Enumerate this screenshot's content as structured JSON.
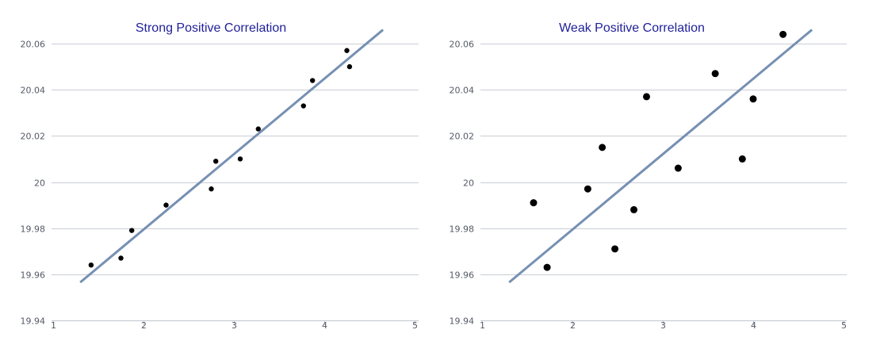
{
  "chart_data": [
    {
      "type": "scatter",
      "title": "Strong Positive Correlation",
      "xlim": [
        1,
        5
      ],
      "ylim": [
        19.94,
        20.06
      ],
      "x_ticks": [
        "1",
        "2",
        "3",
        "4",
        "5"
      ],
      "y_ticks": [
        "19.94",
        "19.96",
        "19.98",
        "20",
        "20.02",
        "20.04",
        "20.06"
      ],
      "grid": "horizontal",
      "point_color": "#000000",
      "line_color": "#7690b2",
      "points": [
        {
          "x": 1.42,
          "y": 19.964
        },
        {
          "x": 1.75,
          "y": 19.967
        },
        {
          "x": 1.87,
          "y": 19.979
        },
        {
          "x": 2.25,
          "y": 19.99
        },
        {
          "x": 2.75,
          "y": 19.997
        },
        {
          "x": 2.8,
          "y": 20.009
        },
        {
          "x": 3.07,
          "y": 20.01
        },
        {
          "x": 3.27,
          "y": 20.023
        },
        {
          "x": 3.77,
          "y": 20.033
        },
        {
          "x": 3.87,
          "y": 20.044
        },
        {
          "x": 4.25,
          "y": 20.057
        },
        {
          "x": 4.28,
          "y": 20.05
        }
      ],
      "trendline": [
        {
          "x": 1.3,
          "y": 19.9565
        },
        {
          "x": 4.65,
          "y": 20.066
        }
      ]
    },
    {
      "type": "scatter",
      "title": "Weak Positive Correlation",
      "xlim": [
        1,
        5
      ],
      "ylim": [
        19.94,
        20.06
      ],
      "x_ticks": [
        "1",
        "2",
        "3",
        "4",
        "5"
      ],
      "y_ticks": [
        "19.94",
        "19.96",
        "19.98",
        "20",
        "20.02",
        "20.04",
        "20.06"
      ],
      "grid": "horizontal",
      "point_color": "#000000",
      "line_color": "#7690b2",
      "points": [
        {
          "x": 1.57,
          "y": 19.991
        },
        {
          "x": 1.72,
          "y": 19.963
        },
        {
          "x": 2.17,
          "y": 19.997
        },
        {
          "x": 2.33,
          "y": 20.015
        },
        {
          "x": 2.47,
          "y": 19.971
        },
        {
          "x": 2.68,
          "y": 19.988
        },
        {
          "x": 2.82,
          "y": 20.037
        },
        {
          "x": 3.17,
          "y": 20.006
        },
        {
          "x": 3.58,
          "y": 20.047
        },
        {
          "x": 3.88,
          "y": 20.01
        },
        {
          "x": 4.0,
          "y": 20.036
        },
        {
          "x": 4.33,
          "y": 20.064
        }
      ],
      "trendline": [
        {
          "x": 1.3,
          "y": 19.9565
        },
        {
          "x": 4.65,
          "y": 20.066
        }
      ]
    }
  ]
}
